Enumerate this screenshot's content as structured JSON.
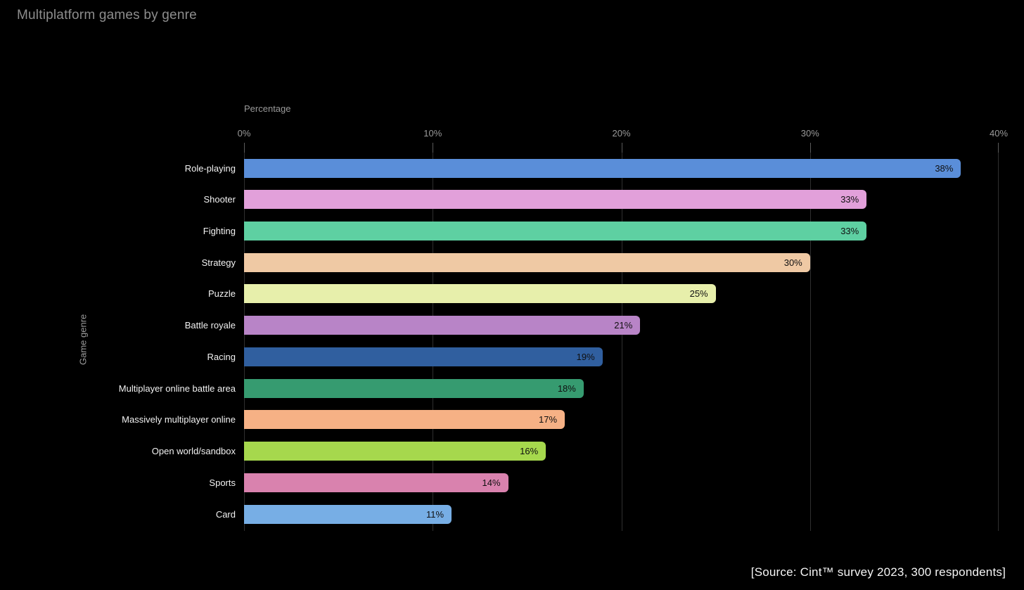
{
  "header": {
    "title": "Multiplatform games by genre"
  },
  "chart_data": {
    "type": "bar",
    "orientation": "horizontal",
    "title": "Multiplatform games by genre",
    "xlabel": "Percentage",
    "ylabel": "Game genre",
    "xlim": [
      0,
      40
    ],
    "grid": "vertical",
    "legend": "none",
    "x_ticks": [
      "0%",
      "10%",
      "20%",
      "30%",
      "40%"
    ],
    "x_tick_values": [
      0,
      10,
      20,
      30,
      40
    ],
    "categories": [
      "Role-playing",
      "Shooter",
      "Fighting",
      "Strategy",
      "Puzzle",
      "Battle royale",
      "Racing",
      "Multiplayer online battle area",
      "Massively multiplayer online",
      "Open world/sandbox",
      "Sports",
      "Card"
    ],
    "values": [
      38,
      33,
      33,
      30,
      25,
      21,
      19,
      18,
      17,
      16,
      14,
      11
    ],
    "value_labels": [
      "38%",
      "33%",
      "33%",
      "30%",
      "25%",
      "21%",
      "19%",
      "18%",
      "17%",
      "16%",
      "14%",
      "11%"
    ],
    "bar_colors": [
      "#5a8ed9",
      "#e2a0da",
      "#5ed0a2",
      "#efc9a4",
      "#e7efab",
      "#b884c7",
      "#305f9f",
      "#369b70",
      "#f6b185",
      "#a6d84d",
      "#d982ae",
      "#77aee5"
    ],
    "source_note": "[Source: Cint™ survey 2023, 300 respondents]"
  },
  "colors": {
    "background": "#000000",
    "gridline": "#2f2f2f",
    "tick": "#5a5a5a",
    "axis_text": "#9a9a9a",
    "title_text": "#8d8d8d",
    "category_text": "#f2f2f2",
    "bar_label_text": "#101010"
  }
}
